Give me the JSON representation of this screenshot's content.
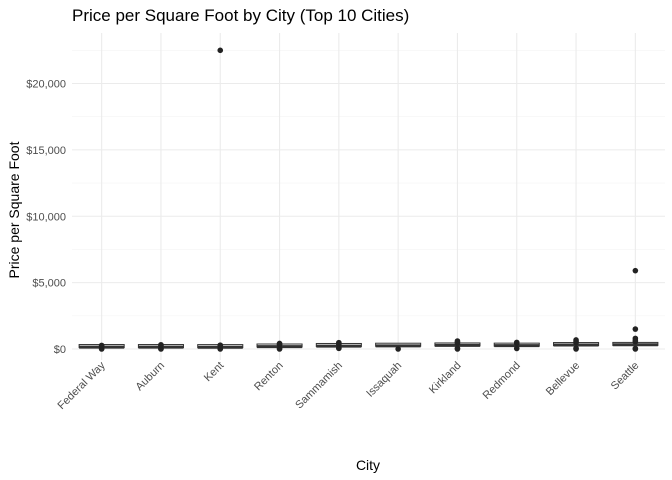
{
  "chart_data": {
    "type": "boxplot",
    "title": "Price per Square Foot by City (Top 10 Cities)",
    "xlabel": "City",
    "ylabel": "Price per Square Foot",
    "ylim": [
      0,
      23000
    ],
    "y_ticks": [
      0,
      5000,
      10000,
      15000,
      20000
    ],
    "y_tick_labels": [
      "$0",
      "$5,000",
      "$10,000",
      "$15,000",
      "$20,000"
    ],
    "grid": true,
    "categories": [
      "Federal Way",
      "Auburn",
      "Kent",
      "Renton",
      "Sammamish",
      "Issaquah",
      "Kirkland",
      "Redmond",
      "Bellevue",
      "Seattle"
    ],
    "boxes": [
      {
        "q1": 110,
        "median": 140,
        "q3": 170,
        "outliers": [
          0,
          30,
          240,
          270
        ]
      },
      {
        "q1": 110,
        "median": 140,
        "q3": 175,
        "outliers": [
          0,
          20,
          260,
          320
        ]
      },
      {
        "q1": 105,
        "median": 135,
        "q3": 170,
        "outliers": [
          0,
          40,
          250,
          290,
          22500
        ]
      },
      {
        "q1": 150,
        "median": 180,
        "q3": 215,
        "outliers": [
          0,
          40,
          320,
          380,
          420
        ]
      },
      {
        "q1": 190,
        "median": 220,
        "q3": 250,
        "outliers": [
          50,
          80,
          350,
          420,
          480
        ]
      },
      {
        "q1": 210,
        "median": 240,
        "q3": 275,
        "outliers": [
          0
        ]
      },
      {
        "q1": 230,
        "median": 270,
        "q3": 310,
        "outliers": [
          0,
          60,
          420,
          520,
          600
        ]
      },
      {
        "q1": 215,
        "median": 255,
        "q3": 300,
        "outliers": [
          40,
          420,
          500
        ]
      },
      {
        "q1": 260,
        "median": 300,
        "q3": 350,
        "outliers": [
          0,
          60,
          480,
          580,
          680
        ]
      },
      {
        "q1": 270,
        "median": 320,
        "q3": 380,
        "outliers": [
          0,
          40,
          550,
          650,
          800,
          1500,
          5900
        ]
      }
    ]
  }
}
